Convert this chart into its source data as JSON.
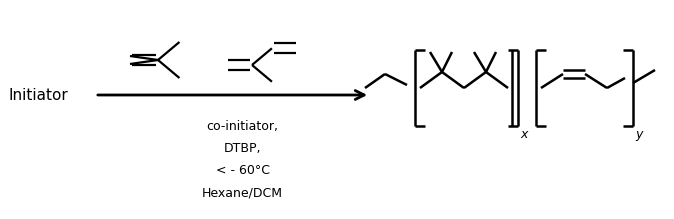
{
  "bg_color": "#ffffff",
  "line_color": "#000000",
  "line_width": 1.6,
  "text_color": "#000000",
  "initiator_text": "Initiator",
  "condition_lines": [
    "co-initiator,",
    "DTBP,",
    "< - 60°C",
    "Hexane/DCM"
  ],
  "subscript_x": "x",
  "subscript_y": "y",
  "figsize": [
    6.74,
    2.19
  ],
  "dpi": 100
}
